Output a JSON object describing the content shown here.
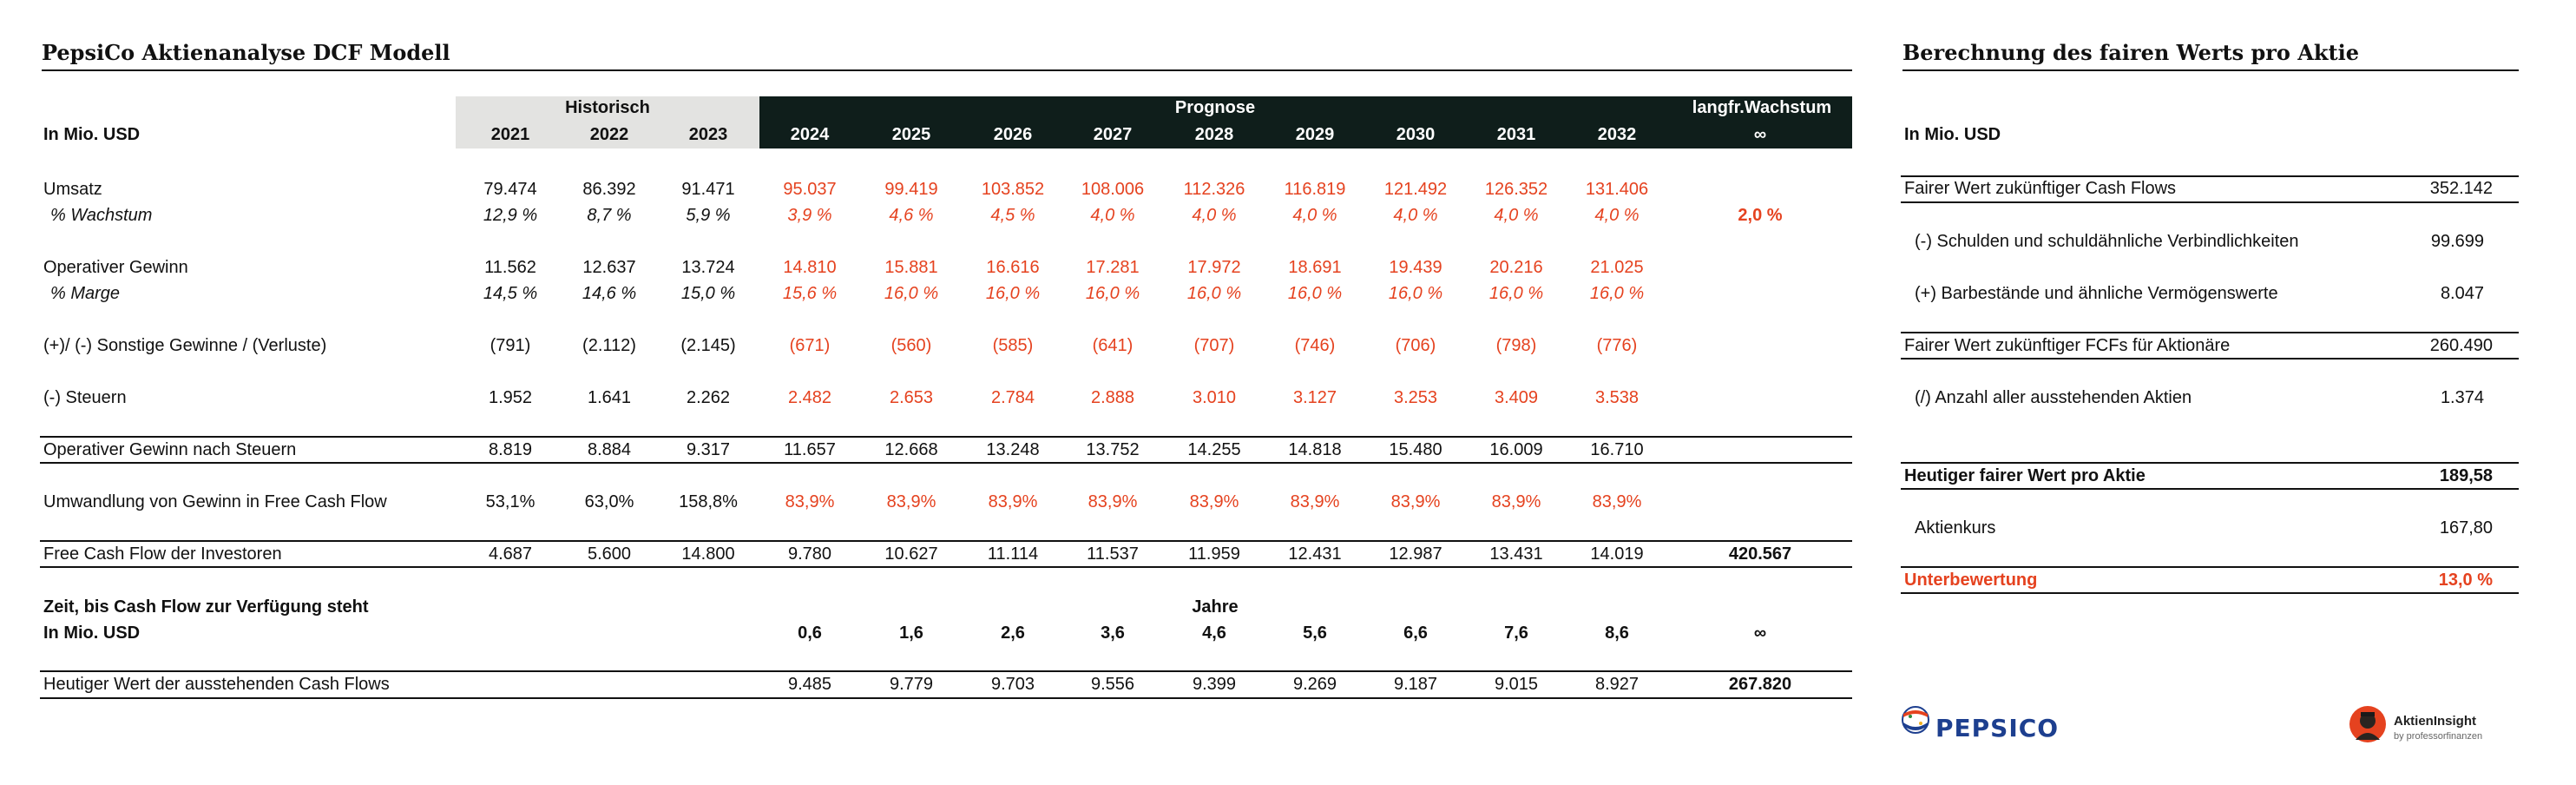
{
  "left_title": "PepsiCo Aktienanalyse DCF Modell",
  "right_title": "Berechnung des fairen Werts pro Aktie",
  "unit_label": "In Mio. USD",
  "group_hist": "Historisch",
  "group_prog": "Prognose",
  "group_long": "langfr.Wachstum",
  "inf": "∞",
  "years": [
    "2021",
    "2022",
    "2023",
    "2024",
    "2025",
    "2026",
    "2027",
    "2028",
    "2029",
    "2030",
    "2031",
    "2032"
  ],
  "rows": [
    {
      "label": "Umsatz",
      "style": "",
      "values": [
        "79.474",
        "86.392",
        "91.471",
        "95.037",
        "99.419",
        "103.852",
        "108.006",
        "112.326",
        "116.819",
        "121.492",
        "126.352",
        "131.406"
      ],
      "extra": ""
    },
    {
      "label": "% Wachstum",
      "style": "it",
      "values": [
        "12,9 %",
        "8,7 %",
        "5,9 %",
        "3,9 %",
        "4,6 %",
        "4,5 %",
        "4,0 %",
        "4,0 %",
        "4,0 %",
        "4,0 %",
        "4,0 %",
        "4,0 %"
      ],
      "extra": "2,0 %"
    },
    {
      "label": "Operativer Gewinn",
      "style": "",
      "values": [
        "11.562",
        "12.637",
        "13.724",
        "14.810",
        "15.881",
        "16.616",
        "17.281",
        "17.972",
        "18.691",
        "19.439",
        "20.216",
        "21.025"
      ],
      "extra": ""
    },
    {
      "label": "% Marge",
      "style": "it",
      "values": [
        "14,5 %",
        "14,6 %",
        "15,0 %",
        "15,6 %",
        "16,0 %",
        "16,0 %",
        "16,0 %",
        "16,0 %",
        "16,0 %",
        "16,0 %",
        "16,0 %",
        "16,0 %"
      ],
      "extra": ""
    },
    {
      "label": "(+)/ (-) Sonstige Gewinne / (Verluste)",
      "style": "",
      "values": [
        "(791)",
        "(2.112)",
        "(2.145)",
        "(671)",
        "(560)",
        "(585)",
        "(641)",
        "(707)",
        "(746)",
        "(706)",
        "(798)",
        "(776)"
      ],
      "extra": ""
    },
    {
      "label": "(-) Steuern",
      "style": "",
      "values": [
        "1.952",
        "1.641",
        "2.262",
        "2.482",
        "2.653",
        "2.784",
        "2.888",
        "3.010",
        "3.127",
        "3.253",
        "3.409",
        "3.538"
      ],
      "extra": ""
    },
    {
      "label": "Operativer Gewinn nach Steuern",
      "style": "plain",
      "values": [
        "8.819",
        "8.884",
        "9.317",
        "11.657",
        "12.668",
        "13.248",
        "13.752",
        "14.255",
        "14.818",
        "15.480",
        "16.009",
        "16.710"
      ],
      "extra": ""
    },
    {
      "label": "Umwandlung von Gewinn in Free Cash Flow",
      "style": "",
      "values": [
        "53,1%",
        "63,0%",
        "158,8%",
        "83,9%",
        "83,9%",
        "83,9%",
        "83,9%",
        "83,9%",
        "83,9%",
        "83,9%",
        "83,9%",
        "83,9%"
      ],
      "extra": ""
    },
    {
      "label": "Free Cash Flow der Investoren",
      "style": "plain",
      "values": [
        "4.687",
        "5.600",
        "14.800",
        "9.780",
        "10.627",
        "11.114",
        "11.537",
        "11.959",
        "12.431",
        "12.987",
        "13.431",
        "14.019"
      ],
      "extra": "420.567"
    }
  ],
  "time_label": "Zeit, bis Cash Flow zur Verfügung steht",
  "time_unit": "In Mio. USD",
  "jahre": "Jahre",
  "time_values": [
    "0,6",
    "1,6",
    "2,6",
    "3,6",
    "4,6",
    "5,6",
    "6,6",
    "7,6",
    "8,6"
  ],
  "pv_label": "Heutiger Wert der ausstehenden Cash Flows",
  "pv_values": [
    "9.485",
    "9.779",
    "9.703",
    "9.556",
    "9.399",
    "9.269",
    "9.187",
    "9.015",
    "8.927"
  ],
  "pv_total": "267.820",
  "right": {
    "unit": "In Mio. USD",
    "fair_cf_label": "Fairer Wert zukünftiger Cash Flows",
    "fair_cf_value": "352.142",
    "debt_label": "(-) Schulden und schuldähnliche Verbindlichkeiten",
    "debt_value": "99.699",
    "cash_label": "(+) Barbestände und ähnliche Vermögenswerte",
    "cash_value": "8.047",
    "equity_label": "Fairer Wert zukünftiger FCFs für Aktionäre",
    "equity_value": "260.490",
    "shares_label": "(/) Anzahl aller ausstehenden Aktien",
    "shares_value": "1.374",
    "per_share_label": "Heutiger fairer Wert pro Aktie",
    "per_share_value": "189,58",
    "price_label": "Aktienkurs",
    "price_value": "167,80",
    "under_label": "Unterbewertung",
    "under_value": "13,0 %"
  },
  "logo_pepsi": "PEPSICO",
  "logo_insight": "AktienInsight",
  "logo_insight_sub": "by professorfinanzen",
  "colors": {
    "accent": "#e5421f",
    "dark_header": "#0f1e1b",
    "hist_header": "#e3e3e1",
    "brand_blue": "#1d3f8f"
  }
}
